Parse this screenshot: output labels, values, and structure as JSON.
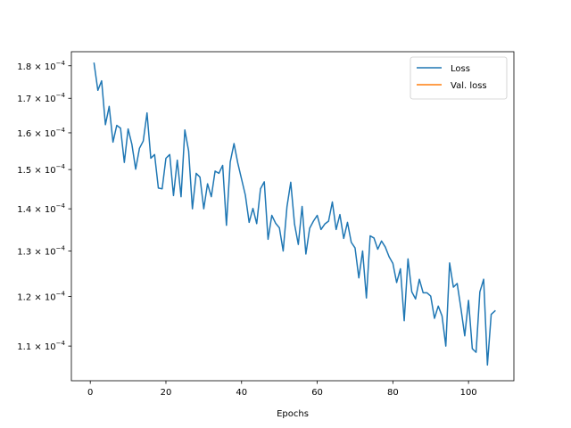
{
  "chart_data": {
    "type": "line",
    "title": "",
    "xlabel": "Epochs",
    "ylabel": "",
    "xlim": [
      -5,
      112
    ],
    "ylim": [
      0.0001035,
      0.0001845
    ],
    "yscale": "log",
    "grid": false,
    "legend_position": "top-right",
    "x_ticks": [
      0,
      20,
      40,
      60,
      80,
      100
    ],
    "x_tick_labels": [
      "0",
      "20",
      "40",
      "60",
      "80",
      "100"
    ],
    "y_ticks": [
      0.00011,
      0.00012,
      0.00013,
      0.00014,
      0.00015,
      0.00016,
      0.00017,
      0.00018
    ],
    "y_tick_labels": [
      {
        "mantissa": "1.1",
        "exponent": "−4"
      },
      {
        "mantissa": "1.2",
        "exponent": "−4"
      },
      {
        "mantissa": "1.3",
        "exponent": "−4"
      },
      {
        "mantissa": "1.4",
        "exponent": "−4"
      },
      {
        "mantissa": "1.5",
        "exponent": "−4"
      },
      {
        "mantissa": "1.6",
        "exponent": "−4"
      },
      {
        "mantissa": "1.7",
        "exponent": "−4"
      },
      {
        "mantissa": "1.8",
        "exponent": "−4"
      }
    ],
    "tick_base": "× 10",
    "series": [
      {
        "name": "Loss",
        "color": "#1f77b4",
        "x": [
          1,
          2,
          3,
          4,
          5,
          6,
          7,
          8,
          9,
          10,
          11,
          12,
          13,
          14,
          15,
          16,
          17,
          18,
          19,
          20,
          21,
          22,
          23,
          24,
          25,
          26,
          27,
          28,
          29,
          30,
          31,
          32,
          33,
          34,
          35,
          36,
          37,
          38,
          39,
          40,
          41,
          42,
          43,
          44,
          45,
          46,
          47,
          48,
          49,
          50,
          51,
          52,
          53,
          54,
          55,
          56,
          57,
          58,
          59,
          60,
          61,
          62,
          63,
          64,
          65,
          66,
          67,
          68,
          69,
          70,
          71,
          72,
          73,
          74,
          75,
          76,
          77,
          78,
          79,
          80,
          81,
          82,
          83,
          84,
          85,
          86,
          87,
          88,
          89,
          90,
          91,
          92,
          93,
          94,
          95,
          96,
          97,
          98,
          99,
          100,
          101,
          102,
          103,
          104,
          105,
          106,
          107
        ],
        "y": [
          0.0001808,
          0.0001724,
          0.0001753,
          0.0001623,
          0.0001676,
          0.0001574,
          0.0001621,
          0.0001613,
          0.0001519,
          0.0001611,
          0.0001568,
          0.0001501,
          0.0001557,
          0.0001577,
          0.0001657,
          0.000153,
          0.000154,
          0.0001452,
          0.000145,
          0.000153,
          0.000154,
          0.0001433,
          0.0001525,
          0.000143,
          0.0001608,
          0.000155,
          0.00014,
          0.000149,
          0.000148,
          0.00014,
          0.0001463,
          0.000143,
          0.0001496,
          0.000149,
          0.0001511,
          0.000136,
          0.000152,
          0.000157,
          0.0001517,
          0.0001475,
          0.0001434,
          0.0001367,
          0.0001401,
          0.0001364,
          0.000145,
          0.0001468,
          0.0001327,
          0.0001384,
          0.0001365,
          0.0001354,
          0.00013,
          0.0001405,
          0.0001467,
          0.0001363,
          0.0001315,
          0.0001406,
          0.0001293,
          0.0001353,
          0.000137,
          0.0001384,
          0.000135,
          0.0001363,
          0.000137,
          0.0001417,
          0.000135,
          0.0001386,
          0.0001329,
          0.0001367,
          0.000132,
          0.0001307,
          0.000124,
          0.00013,
          0.0001197,
          0.0001335,
          0.000133,
          0.0001304,
          0.0001323,
          0.0001309,
          0.0001287,
          0.0001272,
          0.000123,
          0.000126,
          0.000115,
          0.0001282,
          0.000121,
          0.0001195,
          0.0001237,
          0.0001208,
          0.0001208,
          0.0001201,
          0.0001155,
          0.000118,
          0.000116,
          0.00011,
          0.0001273,
          0.000122,
          0.0001228,
          0.0001175,
          0.000112,
          0.0001192,
          0.0001095,
          0.0001088,
          0.000121,
          0.0001237,
          0.0001064,
          0.0001163,
          0.000117
        ]
      },
      {
        "name": "Val. loss",
        "color": "#ff7f0e",
        "x": [],
        "y": []
      }
    ]
  }
}
